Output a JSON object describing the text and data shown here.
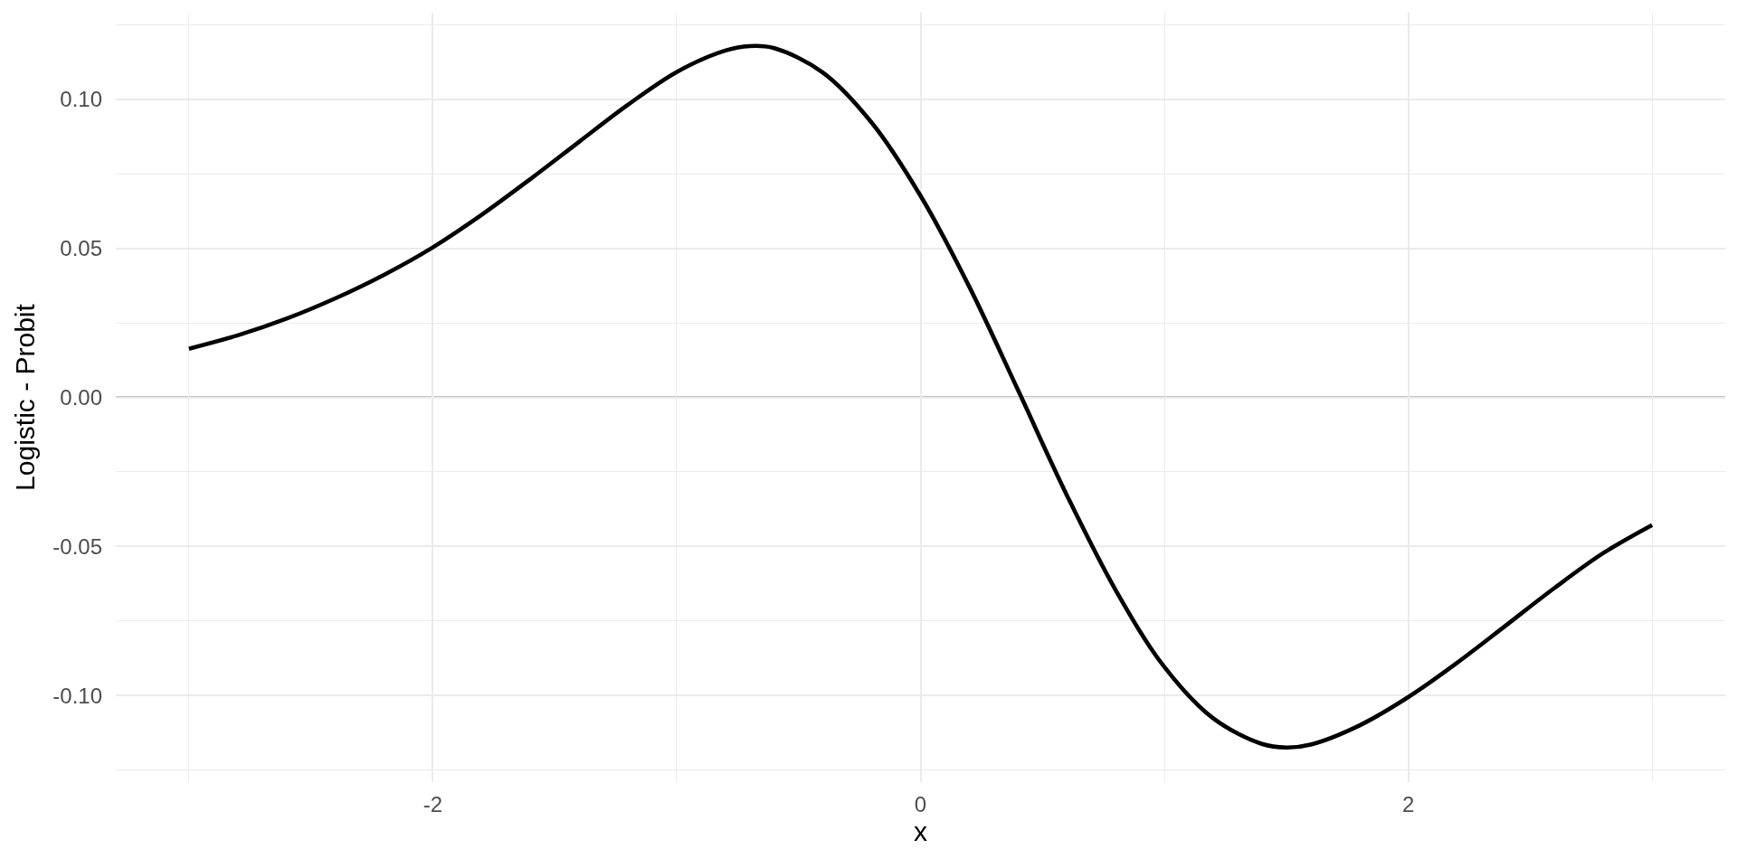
{
  "chart_data": {
    "type": "line",
    "xlabel": "x",
    "ylabel": "Logistic - Probit",
    "x": [
      -3,
      -2.8,
      -2.6,
      -2.4,
      -2.2,
      -2,
      -1.8,
      -1.6,
      -1.4,
      -1.2,
      -1,
      -0.8,
      -0.7,
      -0.6,
      -0.4,
      -0.2,
      0,
      0.2,
      0.4,
      0.6,
      0.8,
      1,
      1.2,
      1.4,
      1.5,
      1.6,
      1.8,
      2,
      2.2,
      2.4,
      2.6,
      2.8,
      3
    ],
    "series": [
      {
        "color": "#000000",
        "values": [
          0.0163,
          0.0208,
          0.0264,
          0.0332,
          0.0411,
          0.0503,
          0.0612,
          0.0732,
          0.0857,
          0.0981,
          0.1091,
          0.1163,
          0.1178,
          0.1171,
          0.1089,
          0.0921,
          0.0676,
          0.0371,
          0.0024,
          -0.0328,
          -0.0646,
          -0.0904,
          -0.1076,
          -0.1162,
          -0.1174,
          -0.1164,
          -0.11,
          -0.1005,
          -0.089,
          -0.0765,
          -0.0639,
          -0.0522,
          -0.0428
        ]
      }
    ],
    "xlim": [
      -3.3,
      3.3
    ],
    "ylim": [
      -0.129,
      0.129
    ],
    "xticks": [
      {
        "value": -3,
        "label": null
      },
      -2,
      {
        "value": -1,
        "label": null
      },
      0,
      {
        "value": 1,
        "label": null
      },
      2,
      {
        "value": 3,
        "label": null
      }
    ],
    "yticks": [
      {
        "value": -0.125,
        "label": null
      },
      {
        "value": -0.1,
        "label": "-0.10"
      },
      {
        "value": -0.075,
        "label": null
      },
      {
        "value": -0.05,
        "label": "-0.05"
      },
      {
        "value": -0.025,
        "label": null
      },
      {
        "value": 0,
        "label": "0.00"
      },
      {
        "value": 0.025,
        "label": null
      },
      {
        "value": 0.05,
        "label": "0.05"
      },
      {
        "value": 0.075,
        "label": null
      },
      {
        "value": 0.1,
        "label": "0.10"
      },
      {
        "value": 0.125,
        "label": null
      }
    ],
    "grid": true,
    "line_style": "solid",
    "ref_lines": [
      {
        "axis": "y",
        "value": 0,
        "color": "#8a8a8a"
      }
    ]
  }
}
